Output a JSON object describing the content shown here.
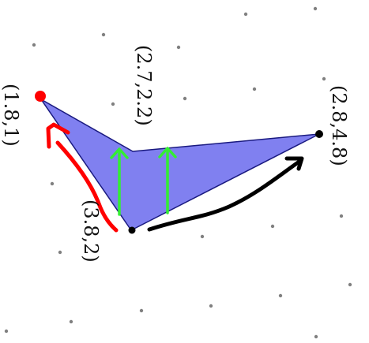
{
  "diagram": {
    "vertices": [
      {
        "id": "A",
        "label": "(1.8,1)"
      },
      {
        "id": "B",
        "label": "(2.7,2.2)"
      },
      {
        "id": "C",
        "label": "(2.8,4.8)"
      },
      {
        "id": "D",
        "label": "(3.8,2)"
      }
    ],
    "colors": {
      "polygon_fill": "#8080f0",
      "polygon_stroke": "#1a1a80",
      "red_stroke": "#ff0000",
      "green_arrows": "#33ee33",
      "black_arrow": "#000000",
      "grid_dots": "#808080"
    }
  }
}
